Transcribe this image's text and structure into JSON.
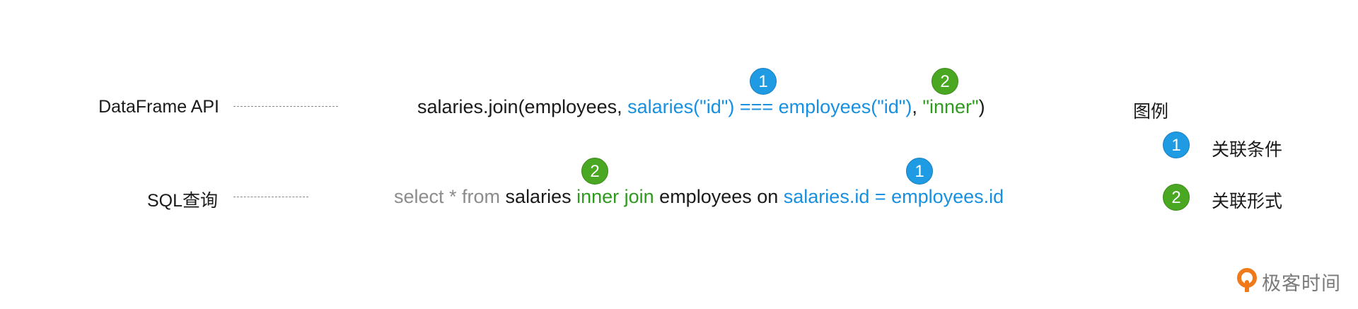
{
  "rows": {
    "dataframe": {
      "label": "DataFrame API",
      "code": {
        "part1": "salaries.join(employees, ",
        "condition": "salaries(\"id\") === employees(\"id\")",
        "comma": ", ",
        "join_type": "\"inner\"",
        "close": ")"
      }
    },
    "sql": {
      "label": "SQL查询",
      "code": {
        "keywords": "select * from ",
        "table": "salaries ",
        "join_type": "inner join",
        "middle": " employees on ",
        "condition": "salaries.id = employees.id"
      }
    }
  },
  "badges": {
    "one": "1",
    "two": "2"
  },
  "legend": {
    "title": "图例",
    "items": [
      {
        "number": "1",
        "label": "关联条件",
        "color": "#1e9be3"
      },
      {
        "number": "2",
        "label": "关联形式",
        "color": "#4aa722"
      }
    ]
  },
  "logo": {
    "text": "极客时间"
  },
  "colors": {
    "condition": "#1890e0",
    "join_type": "#2e9a1e",
    "keyword": "#8c8c8c",
    "text": "#1a1a1a"
  }
}
